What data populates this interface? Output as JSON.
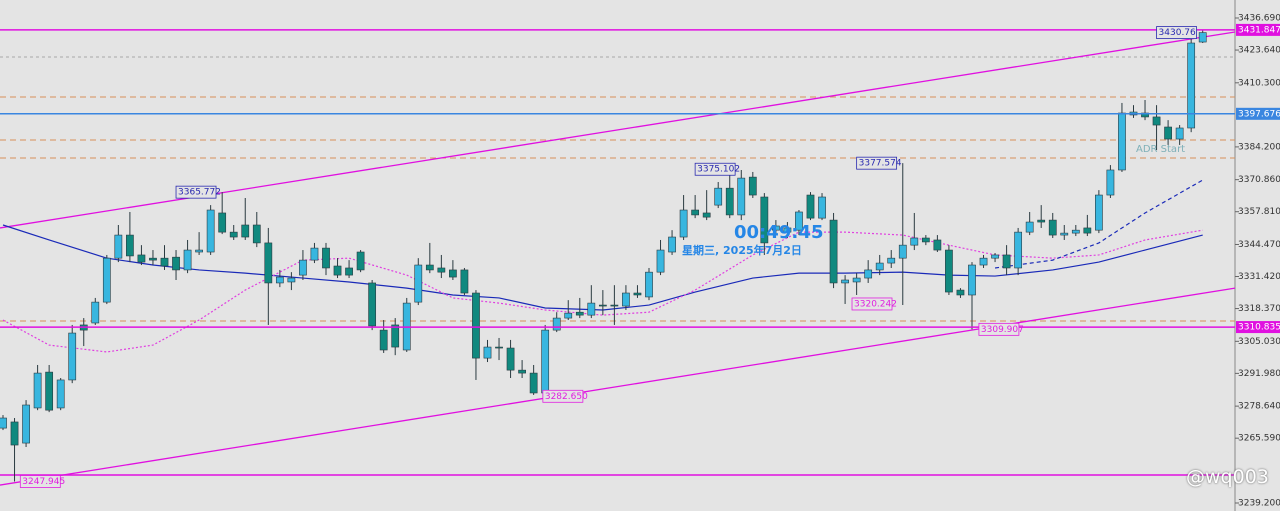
{
  "chart_data": {
    "type": "candlestick",
    "xlim": [
      -0.26,
      106.8
    ],
    "ylim": [
      3235.94,
      3444.02
    ],
    "yticks": [
      {
        "value": 3436.69,
        "label": "3436.690"
      },
      {
        "value": 3423.64,
        "label": "3423.640"
      },
      {
        "value": 3410.3,
        "label": "3410.300"
      },
      {
        "value": 3384.2,
        "label": "3384.200"
      },
      {
        "value": 3370.86,
        "label": "3370.860"
      },
      {
        "value": 3357.81,
        "label": "3357.810"
      },
      {
        "value": 3344.47,
        "label": "3344.470"
      },
      {
        "value": 3331.42,
        "label": "3331.420"
      },
      {
        "value": 3318.37,
        "label": "3318.370"
      },
      {
        "value": 3305.03,
        "label": "3305.030"
      },
      {
        "value": 3291.98,
        "label": "3291.980"
      },
      {
        "value": 3278.64,
        "label": "3278.640"
      },
      {
        "value": 3265.59,
        "label": "3265.590"
      },
      {
        "value": 3239.2,
        "label": "3239.200"
      }
    ],
    "up_color": "#38b6df",
    "down_color": "#10897f",
    "open": [
      3269.7,
      3272.2,
      3263.6,
      3277.9,
      3292.5,
      3277.9,
      3289.3,
      3311.7,
      3312.5,
      3321.0,
      3338.9,
      3348.3,
      3340.2,
      3338.9,
      3338.9,
      3339.3,
      3334.1,
      3341.4,
      3341.4,
      3357.3,
      3349.5,
      3352.4,
      3352.4,
      3345.1,
      3328.8,
      3329.2,
      3332.0,
      3338.1,
      3343.0,
      3335.7,
      3334.9,
      3341.4,
      3328.8,
      3309.6,
      3311.7,
      3301.5,
      3321.0,
      3336.1,
      3334.9,
      3334.1,
      3334.1,
      3324.7,
      3298.2,
      3302.7,
      3302.3,
      3293.3,
      3292.1,
      3284.0,
      3309.6,
      3314.5,
      3316.9,
      3315.7,
      3319.8,
      3319.8,
      3319.4,
      3324.7,
      3323.1,
      3333.2,
      3341.4,
      3347.5,
      3358.5,
      3357.3,
      3360.5,
      3367.4,
      3356.5,
      3371.9,
      3363.8,
      3350.3,
      3349.5,
      3350.3,
      3364.6,
      3355.2,
      3354.4,
      3328.8,
      3329.2,
      3330.8,
      3334.1,
      3336.9,
      3338.9,
      3344.2,
      3347.1,
      3346.3,
      3342.2,
      3325.9,
      3323.9,
      3336.1,
      3338.9,
      3340.2,
      3334.9,
      3349.5,
      3354.4,
      3354.4,
      3348.3,
      3349.1,
      3351.2,
      3350.3,
      3364.6,
      3374.8,
      3397.2,
      3398.0,
      3396.4,
      3392.3,
      3387.4,
      3391.9,
      3426.9
    ],
    "high": [
      3275.0,
      3273.8,
      3281.1,
      3295.4,
      3295.4,
      3290.1,
      3311.7,
      3314.5,
      3322.7,
      3340.2,
      3352.4,
      3357.7,
      3344.2,
      3342.2,
      3344.2,
      3342.2,
      3346.3,
      3349.5,
      3360.5,
      3365.772,
      3352.4,
      3363.4,
      3357.7,
      3351.2,
      3334.1,
      3333.2,
      3342.2,
      3345.1,
      3345.1,
      3338.9,
      3338.1,
      3342.2,
      3330.0,
      3313.7,
      3314.5,
      3322.7,
      3338.9,
      3345.1,
      3340.2,
      3338.1,
      3334.9,
      3325.9,
      3305.6,
      3306.4,
      3305.6,
      3297.4,
      3295.4,
      3311.7,
      3316.9,
      3321.8,
      3322.7,
      3327.9,
      3325.9,
      3327.9,
      3327.9,
      3327.9,
      3334.9,
      3346.3,
      3350.3,
      3364.6,
      3364.6,
      3366.6,
      3369.9,
      3375.102,
      3374.8,
      3374.0,
      3365.4,
      3354.4,
      3353.6,
      3358.5,
      3365.8,
      3365.4,
      3357.3,
      3332.0,
      3332.8,
      3338.1,
      3340.2,
      3342.2,
      3377.574,
      3357.3,
      3348.3,
      3348.3,
      3344.2,
      3326.7,
      3337.3,
      3340.2,
      3341.0,
      3344.2,
      3351.2,
      3357.7,
      3360.5,
      3357.3,
      3352.4,
      3352.4,
      3356.5,
      3366.6,
      3376.8,
      3402.1,
      3401.2,
      3403.3,
      3401.2,
      3395.1,
      3393.1,
      3428.5,
      3431.8
    ],
    "low": [
      3268.9,
      3247.945,
      3262.0,
      3277.0,
      3276.2,
      3277.0,
      3288.0,
      3303.1,
      3311.7,
      3320.2,
      3337.3,
      3337.3,
      3336.1,
      3336.1,
      3334.1,
      3330.0,
      3332.8,
      3340.2,
      3340.2,
      3348.7,
      3346.3,
      3346.3,
      3343.4,
      3311.7,
      3327.1,
      3325.9,
      3330.0,
      3336.9,
      3332.0,
      3330.8,
      3330.8,
      3333.2,
      3309.6,
      3300.3,
      3299.4,
      3300.7,
      3319.8,
      3332.8,
      3330.8,
      3330.0,
      3323.9,
      3289.3,
      3296.6,
      3297.4,
      3290.1,
      3290.1,
      3283.2,
      3282.65,
      3308.8,
      3313.7,
      3314.5,
      3314.5,
      3315.7,
      3311.7,
      3317.8,
      3322.7,
      3321.8,
      3332.0,
      3340.2,
      3346.3,
      3355.2,
      3354.4,
      3359.3,
      3355.2,
      3354.4,
      3363.4,
      3340.2,
      3348.3,
      3347.1,
      3348.3,
      3354.4,
      3354.4,
      3326.7,
      3320.242,
      3323.9,
      3328.8,
      3332.0,
      3334.9,
      3319.8,
      3342.2,
      3344.2,
      3341.4,
      3323.9,
      3322.7,
      3309.907,
      3334.9,
      3337.3,
      3332.0,
      3332.0,
      3348.3,
      3351.2,
      3347.1,
      3346.3,
      3347.9,
      3347.9,
      3349.1,
      3363.4,
      3374.0,
      3396.0,
      3395.1,
      3382.9,
      3385.0,
      3385.0,
      3390.2,
      3426.5
    ],
    "close": [
      3273.8,
      3262.8,
      3279.1,
      3292.1,
      3277.0,
      3289.3,
      3308.4,
      3309.6,
      3321.0,
      3338.9,
      3348.3,
      3339.8,
      3337.3,
      3338.1,
      3335.7,
      3334.1,
      3342.2,
      3342.2,
      3358.5,
      3349.5,
      3347.5,
      3347.5,
      3345.1,
      3328.8,
      3331.2,
      3330.8,
      3338.1,
      3343.0,
      3334.9,
      3332.0,
      3332.0,
      3334.1,
      3311.3,
      3301.5,
      3302.7,
      3320.6,
      3336.1,
      3334.1,
      3333.2,
      3331.2,
      3324.7,
      3298.2,
      3302.7,
      3302.3,
      3293.3,
      3292.1,
      3284.0,
      3309.6,
      3314.5,
      3316.5,
      3315.7,
      3320.6,
      3319.4,
      3319.4,
      3324.7,
      3323.9,
      3333.2,
      3342.2,
      3347.5,
      3358.5,
      3356.5,
      3355.6,
      3367.4,
      3356.5,
      3371.5,
      3364.6,
      3345.1,
      3352.0,
      3351.2,
      3357.7,
      3355.2,
      3363.8,
      3328.8,
      3330.0,
      3330.8,
      3334.1,
      3336.9,
      3338.9,
      3344.2,
      3347.1,
      3345.5,
      3342.2,
      3325.1,
      3323.9,
      3336.1,
      3338.9,
      3340.2,
      3334.9,
      3349.5,
      3353.6,
      3353.6,
      3348.3,
      3349.1,
      3350.3,
      3349.1,
      3364.6,
      3374.8,
      3398.0,
      3398.4,
      3396.4,
      3393.1,
      3387.4,
      3391.9,
      3426.5,
      3430.76
    ],
    "overlays": [
      {
        "color": "#1a2ab8",
        "dash": "none",
        "x": [
          0,
          4,
          9,
          13,
          17,
          21,
          26,
          30,
          35,
          39,
          43,
          47,
          52,
          56,
          60,
          65,
          69,
          73,
          78,
          82,
          86,
          91,
          95,
          99,
          104
        ],
        "values": [
          3352.4,
          3346.3,
          3338.9,
          3336.1,
          3334.1,
          3332.8,
          3330.8,
          3329.2,
          3326.7,
          3323.9,
          3322.7,
          3318.6,
          3317.8,
          3319.8,
          3325.1,
          3330.8,
          3332.8,
          3332.8,
          3333.2,
          3332.0,
          3331.6,
          3334.1,
          3337.3,
          3342.2,
          3348.3
        ]
      },
      {
        "color": "#e040e0",
        "dash": "2 2",
        "x": [
          0,
          4,
          9,
          13,
          17,
          21,
          26,
          30,
          35,
          39,
          43,
          47,
          52,
          56,
          60,
          65,
          69,
          73,
          78,
          82,
          86,
          91,
          95,
          99,
          104
        ],
        "values": [
          3313.7,
          3303.5,
          3300.7,
          3303.5,
          3313.7,
          3325.9,
          3338.1,
          3338.9,
          3332.0,
          3322.7,
          3320.6,
          3317.8,
          3315.7,
          3316.9,
          3325.9,
          3340.2,
          3349.5,
          3349.5,
          3348.3,
          3344.2,
          3340.2,
          3338.9,
          3340.2,
          3346.3,
          3350.3
        ]
      },
      {
        "color": "#1a2ab8",
        "dash": "4 3",
        "x": [
          86,
          91,
          95,
          99,
          104
        ],
        "values": [
          3334.9,
          3338.1,
          3345.1,
          3357.3,
          3370.7
        ]
      }
    ],
    "trendlines": [
      {
        "color": "#e010e0",
        "x": [
          -0.26,
          106.8
        ],
        "values": [
          3351.2,
          3431.0
        ]
      },
      {
        "color": "#e010e0",
        "x": [
          -0.26,
          106.8
        ],
        "values": [
          3246.5,
          3326.7
        ]
      }
    ],
    "guides": [
      {
        "value": 3404.5,
        "color": "#d8915a",
        "dash": "6 4"
      },
      {
        "value": 3387.0,
        "color": "#d8915a",
        "dash": "6 4"
      },
      {
        "value": 3379.7,
        "color": "#d8915a",
        "dash": "6 4"
      },
      {
        "value": 3313.3,
        "color": "#d8915a",
        "dash": "6 4"
      },
      {
        "value": 3420.8,
        "color": "#a8a8a8",
        "dash": "3 3"
      },
      {
        "value": 3250.6,
        "color": "#e010e0",
        "dash": "none"
      }
    ],
    "levels": [
      {
        "value": 3431.847,
        "color": "#e010e0"
      },
      {
        "value": 3397.676,
        "color": "#3a86e0"
      },
      {
        "value": 3310.835,
        "color": "#e010e0"
      }
    ],
    "annotations": [
      {
        "x": 15,
        "value": 3365.772,
        "color": "#2a2ab0"
      },
      {
        "x": 60,
        "value": 3375.102,
        "color": "#2a2ab0"
      },
      {
        "x": 74,
        "value": 3377.574,
        "color": "#2a2ab0"
      },
      {
        "x": 73.6,
        "value": 3320.242,
        "color": "#e020e0"
      },
      {
        "x": 84.6,
        "value": 3309.907,
        "color": "#e020e0"
      },
      {
        "x": 46.8,
        "value": 3282.65,
        "label": "3282.650",
        "color": "#e020e0"
      },
      {
        "x": 1.5,
        "value": 3247.945,
        "color": "#e020e0"
      },
      {
        "x": 100,
        "value": 3430.76,
        "color": "#2a2ab0"
      }
    ],
    "clock": "00:49:45",
    "date": "星期三, 2025年7月2日",
    "adr_label": "ADR Start",
    "watermark": "@wq003"
  }
}
